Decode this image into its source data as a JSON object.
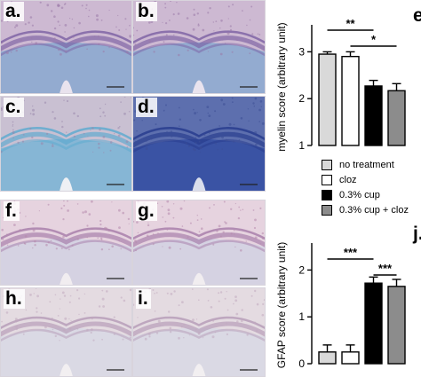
{
  "panels": [
    {
      "label": "a.",
      "stain": "luxol",
      "tone": "light"
    },
    {
      "label": "b.",
      "stain": "luxol",
      "tone": "light"
    },
    {
      "label": "c.",
      "stain": "luxol",
      "tone": "pale"
    },
    {
      "label": "d.",
      "stain": "luxol",
      "tone": "dark"
    },
    {
      "label": "f.",
      "stain": "gfap",
      "tone": "medium"
    },
    {
      "label": "g.",
      "stain": "gfap",
      "tone": "medium"
    },
    {
      "label": "h.",
      "stain": "gfap",
      "tone": "faint"
    },
    {
      "label": "i.",
      "stain": "gfap",
      "tone": "faint"
    }
  ],
  "colors": {
    "no_treatment": "#d9d9d9",
    "cloz": "#ffffff",
    "cup": "#000000",
    "cup_cloz": "#8c8c8c"
  },
  "legend": {
    "items": [
      {
        "label": "no treatment",
        "color": "#d9d9d9"
      },
      {
        "label": "cloz",
        "color": "#ffffff"
      },
      {
        "label": "0.3% cup",
        "color": "#000000"
      },
      {
        "label": "0.3% cup + cloz",
        "color": "#8c8c8c"
      }
    ]
  },
  "chart_data": [
    {
      "panel_label": "e.",
      "type": "bar",
      "categories": [
        "no treatment",
        "cloz",
        "0.3% cup",
        "0.3% cup + cloz"
      ],
      "values": [
        2.95,
        2.9,
        2.27,
        2.17
      ],
      "errors": [
        0.05,
        0.1,
        0.12,
        0.15
      ],
      "ylabel": "myelin score (arbitrary unit)",
      "ylim": [
        1,
        3.5
      ],
      "yticks": [
        "1",
        "2",
        "3"
      ],
      "significance": [
        {
          "label": "**",
          "from": 0,
          "to": 2
        },
        {
          "label": "*",
          "from": 1,
          "to": 3
        }
      ]
    },
    {
      "panel_label": "j.",
      "type": "bar",
      "categories": [
        "no treatment",
        "cloz",
        "0.3% cup",
        "0.3% cup + cloz"
      ],
      "values": [
        0.25,
        0.25,
        1.72,
        1.65
      ],
      "errors": [
        0.15,
        0.15,
        0.13,
        0.15
      ],
      "ylabel": "GFAP score (arbitrary unit)",
      "ylim": [
        0,
        2.5
      ],
      "yticks": [
        "0",
        "1",
        "2"
      ],
      "significance": [
        {
          "label": "***",
          "from": 0,
          "to": 2
        },
        {
          "label": "***",
          "from": 2,
          "to": 3
        }
      ]
    }
  ]
}
